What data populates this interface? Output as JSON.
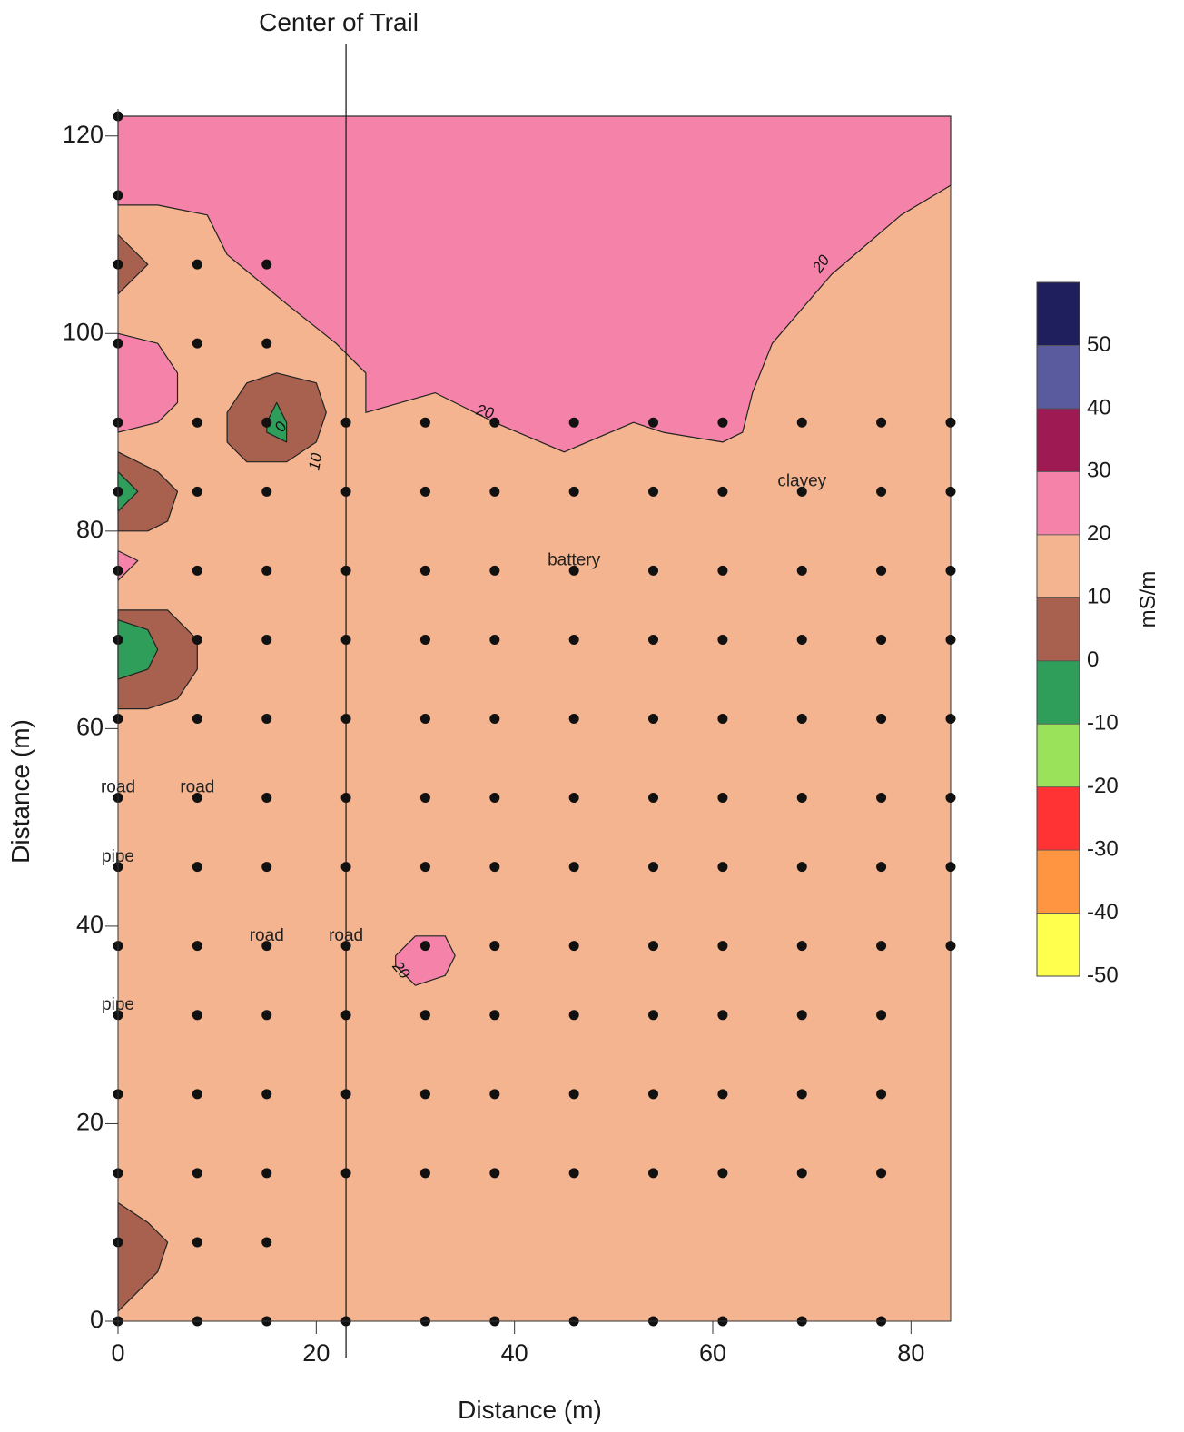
{
  "chart_data": {
    "type": "contour",
    "title": "",
    "xlabel": "Distance (m)",
    "ylabel": "Distance (m)",
    "xlim": [
      0,
      84
    ],
    "ylim": [
      0,
      122
    ],
    "x_ticks": [
      0,
      20,
      40,
      60,
      80
    ],
    "y_ticks": [
      0,
      20,
      40,
      60,
      80,
      100,
      120
    ],
    "grid": false,
    "reference_line": {
      "x": 23,
      "label": "Center of Trail"
    },
    "annotations": [
      {
        "text": "road",
        "x": 0,
        "y": 54
      },
      {
        "text": "road",
        "x": 8,
        "y": 54
      },
      {
        "text": "pipe",
        "x": 0,
        "y": 47
      },
      {
        "text": "road",
        "x": 15,
        "y": 39
      },
      {
        "text": "road",
        "x": 23,
        "y": 39
      },
      {
        "text": "pipe",
        "x": 0,
        "y": 32
      },
      {
        "text": "battery",
        "x": 46,
        "y": 77
      },
      {
        "text": "clayey",
        "x": 69,
        "y": 85
      }
    ],
    "contour_labels": [
      {
        "text": "20",
        "x": 71,
        "y": 107,
        "rotate": -55
      },
      {
        "text": "20",
        "x": 37,
        "y": 92,
        "rotate": 15
      },
      {
        "text": "0",
        "x": 16.5,
        "y": 90.5,
        "rotate": -60
      },
      {
        "text": "10",
        "x": 20,
        "y": 87,
        "rotate": -80
      },
      {
        "text": "20",
        "x": 28.5,
        "y": 35.5,
        "rotate": 50
      }
    ],
    "colorbar": {
      "label": "mS/m",
      "levels": [
        -50,
        -40,
        -30,
        -20,
        -10,
        0,
        10,
        20,
        30,
        40,
        50
      ],
      "colors": [
        "#ffff4d",
        "#ff9540",
        "#ff3333",
        "#99e25a",
        "#2f9e5a",
        "#a8604f",
        "#f4b48f",
        "#f582a8",
        "#9e1a52",
        "#5a5a9e",
        "#1f1f5e"
      ]
    },
    "background_level_color": "#f4b48f",
    "regions": [
      {
        "name": "north-high",
        "color": "#f582a8",
        "points": [
          [
            0,
            122
          ],
          [
            84,
            122
          ],
          [
            84,
            115
          ],
          [
            79,
            112
          ],
          [
            72,
            106
          ],
          [
            66,
            99
          ],
          [
            64,
            94
          ],
          [
            63,
            90
          ],
          [
            61,
            89
          ],
          [
            55,
            90
          ],
          [
            52,
            91
          ],
          [
            45,
            88
          ],
          [
            38,
            91
          ],
          [
            32,
            94
          ],
          [
            25,
            92
          ],
          [
            25,
            96
          ],
          [
            22,
            99
          ],
          [
            17,
            103
          ],
          [
            11,
            108
          ],
          [
            9,
            112
          ],
          [
            4,
            113
          ],
          [
            0,
            113
          ]
        ]
      },
      {
        "name": "west-high-1",
        "color": "#f582a8",
        "points": [
          [
            0,
            100
          ],
          [
            4,
            99
          ],
          [
            6,
            96
          ],
          [
            6,
            93
          ],
          [
            4,
            91
          ],
          [
            0,
            90
          ]
        ]
      },
      {
        "name": "west-high-2",
        "color": "#f582a8",
        "points": [
          [
            0,
            78
          ],
          [
            2,
            77
          ],
          [
            0,
            75
          ]
        ]
      },
      {
        "name": "south-high",
        "color": "#f582a8",
        "points": [
          [
            28,
            36
          ],
          [
            28,
            37
          ],
          [
            30,
            39
          ],
          [
            33,
            39
          ],
          [
            34,
            37
          ],
          [
            33,
            35
          ],
          [
            30,
            34
          ]
        ]
      },
      {
        "name": "low-nw",
        "color": "#a8604f",
        "points": [
          [
            0,
            110
          ],
          [
            3,
            107
          ],
          [
            0,
            104
          ]
        ]
      },
      {
        "name": "low-pit",
        "color": "#a8604f",
        "points": [
          [
            11,
            92
          ],
          [
            13,
            95
          ],
          [
            16,
            96
          ],
          [
            20,
            95
          ],
          [
            21,
            92
          ],
          [
            20,
            89
          ],
          [
            17,
            87
          ],
          [
            13,
            87
          ],
          [
            11,
            89
          ]
        ]
      },
      {
        "name": "low-w1",
        "color": "#a8604f",
        "points": [
          [
            0,
            88
          ],
          [
            4,
            86
          ],
          [
            6,
            84
          ],
          [
            5,
            81
          ],
          [
            3,
            80
          ],
          [
            0,
            80
          ]
        ]
      },
      {
        "name": "low-w2",
        "color": "#a8604f",
        "points": [
          [
            0,
            72
          ],
          [
            5,
            72
          ],
          [
            8,
            69
          ],
          [
            8,
            66
          ],
          [
            6,
            63
          ],
          [
            3,
            62
          ],
          [
            0,
            62
          ]
        ]
      },
      {
        "name": "low-sw",
        "color": "#a8604f",
        "points": [
          [
            0,
            12
          ],
          [
            3,
            10
          ],
          [
            5,
            8
          ],
          [
            4,
            5
          ],
          [
            2,
            3
          ],
          [
            0,
            1
          ]
        ]
      },
      {
        "name": "vlow-pit",
        "color": "#2f9e5a",
        "points": [
          [
            15,
            91
          ],
          [
            16,
            93
          ],
          [
            17,
            91
          ],
          [
            17,
            89
          ],
          [
            15,
            90
          ]
        ]
      },
      {
        "name": "vlow-w1",
        "color": "#2f9e5a",
        "points": [
          [
            0,
            86
          ],
          [
            2,
            84
          ],
          [
            0,
            82
          ]
        ]
      },
      {
        "name": "vlow-w2",
        "color": "#2f9e5a",
        "points": [
          [
            0,
            71
          ],
          [
            3,
            70
          ],
          [
            4,
            68
          ],
          [
            3,
            66
          ],
          [
            0,
            65
          ]
        ]
      }
    ],
    "measurement_points": [
      [
        0,
        122
      ],
      [
        0,
        114
      ],
      [
        0,
        107
      ],
      [
        8,
        107
      ],
      [
        15,
        107
      ],
      [
        0,
        99
      ],
      [
        8,
        99
      ],
      [
        15,
        99
      ],
      [
        0,
        91
      ],
      [
        8,
        91
      ],
      [
        15,
        91
      ],
      [
        23,
        91
      ],
      [
        31,
        91
      ],
      [
        38,
        91
      ],
      [
        46,
        91
      ],
      [
        54,
        91
      ],
      [
        61,
        91
      ],
      [
        69,
        91
      ],
      [
        77,
        91
      ],
      [
        84,
        91
      ],
      [
        0,
        84
      ],
      [
        8,
        84
      ],
      [
        15,
        84
      ],
      [
        23,
        84
      ],
      [
        31,
        84
      ],
      [
        38,
        84
      ],
      [
        46,
        84
      ],
      [
        54,
        84
      ],
      [
        61,
        84
      ],
      [
        69,
        84
      ],
      [
        77,
        84
      ],
      [
        84,
        84
      ],
      [
        0,
        76
      ],
      [
        8,
        76
      ],
      [
        15,
        76
      ],
      [
        23,
        76
      ],
      [
        31,
        76
      ],
      [
        38,
        76
      ],
      [
        46,
        76
      ],
      [
        54,
        76
      ],
      [
        61,
        76
      ],
      [
        69,
        76
      ],
      [
        77,
        76
      ],
      [
        84,
        76
      ],
      [
        0,
        69
      ],
      [
        8,
        69
      ],
      [
        15,
        69
      ],
      [
        23,
        69
      ],
      [
        31,
        69
      ],
      [
        38,
        69
      ],
      [
        46,
        69
      ],
      [
        54,
        69
      ],
      [
        61,
        69
      ],
      [
        69,
        69
      ],
      [
        77,
        69
      ],
      [
        84,
        69
      ],
      [
        0,
        61
      ],
      [
        8,
        61
      ],
      [
        15,
        61
      ],
      [
        23,
        61
      ],
      [
        31,
        61
      ],
      [
        38,
        61
      ],
      [
        46,
        61
      ],
      [
        54,
        61
      ],
      [
        61,
        61
      ],
      [
        69,
        61
      ],
      [
        77,
        61
      ],
      [
        84,
        61
      ],
      [
        0,
        53
      ],
      [
        8,
        53
      ],
      [
        15,
        53
      ],
      [
        23,
        53
      ],
      [
        31,
        53
      ],
      [
        38,
        53
      ],
      [
        46,
        53
      ],
      [
        54,
        53
      ],
      [
        61,
        53
      ],
      [
        69,
        53
      ],
      [
        77,
        53
      ],
      [
        84,
        53
      ],
      [
        0,
        46
      ],
      [
        8,
        46
      ],
      [
        15,
        46
      ],
      [
        23,
        46
      ],
      [
        31,
        46
      ],
      [
        38,
        46
      ],
      [
        46,
        46
      ],
      [
        54,
        46
      ],
      [
        61,
        46
      ],
      [
        69,
        46
      ],
      [
        77,
        46
      ],
      [
        84,
        46
      ],
      [
        0,
        38
      ],
      [
        8,
        38
      ],
      [
        15,
        38
      ],
      [
        23,
        38
      ],
      [
        31,
        38
      ],
      [
        38,
        38
      ],
      [
        46,
        38
      ],
      [
        54,
        38
      ],
      [
        61,
        38
      ],
      [
        69,
        38
      ],
      [
        77,
        38
      ],
      [
        84,
        38
      ],
      [
        0,
        31
      ],
      [
        8,
        31
      ],
      [
        15,
        31
      ],
      [
        23,
        31
      ],
      [
        31,
        31
      ],
      [
        38,
        31
      ],
      [
        46,
        31
      ],
      [
        54,
        31
      ],
      [
        61,
        31
      ],
      [
        69,
        31
      ],
      [
        77,
        31
      ],
      [
        0,
        23
      ],
      [
        8,
        23
      ],
      [
        15,
        23
      ],
      [
        23,
        23
      ],
      [
        31,
        23
      ],
      [
        38,
        23
      ],
      [
        46,
        23
      ],
      [
        54,
        23
      ],
      [
        61,
        23
      ],
      [
        69,
        23
      ],
      [
        77,
        23
      ],
      [
        0,
        15
      ],
      [
        8,
        15
      ],
      [
        15,
        15
      ],
      [
        23,
        15
      ],
      [
        31,
        15
      ],
      [
        38,
        15
      ],
      [
        46,
        15
      ],
      [
        54,
        15
      ],
      [
        61,
        15
      ],
      [
        69,
        15
      ],
      [
        77,
        15
      ],
      [
        0,
        8
      ],
      [
        8,
        8
      ],
      [
        15,
        8
      ],
      [
        0,
        0
      ],
      [
        8,
        0
      ],
      [
        15,
        0
      ],
      [
        23,
        0
      ],
      [
        31,
        0
      ],
      [
        38,
        0
      ],
      [
        46,
        0
      ],
      [
        54,
        0
      ],
      [
        61,
        0
      ],
      [
        69,
        0
      ],
      [
        77,
        0
      ]
    ]
  }
}
